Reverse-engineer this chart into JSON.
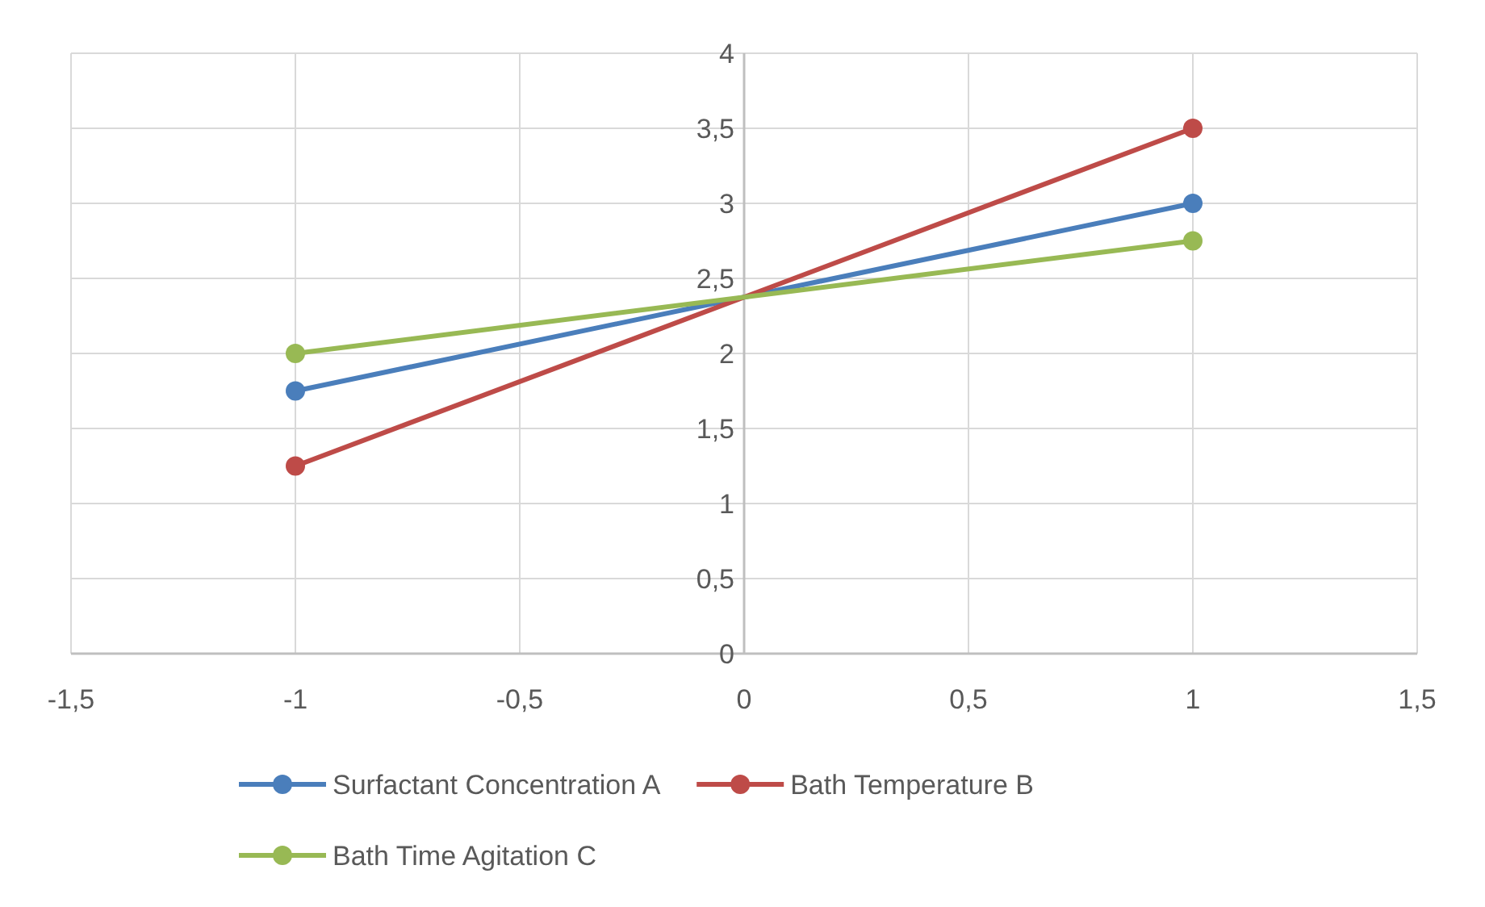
{
  "chart_data": {
    "type": "line",
    "xlim": [
      -1.5,
      1.5
    ],
    "ylim": [
      0,
      4
    ],
    "xticks": [
      {
        "value": -1.5,
        "label": "-1,5"
      },
      -1,
      {
        "value": -0.5,
        "label": "-0,5"
      },
      0,
      {
        "value": 0.5,
        "label": "0,5"
      },
      1,
      {
        "value": 1.5,
        "label": "1,5"
      }
    ],
    "yticks": [
      0,
      {
        "value": 0.5,
        "label": "0,5"
      },
      1,
      {
        "value": 1.5,
        "label": "1,5"
      },
      2,
      {
        "value": 2.5,
        "label": "2,5"
      },
      3,
      {
        "value": 3.5,
        "label": "3,5"
      },
      4
    ],
    "x": [
      -1,
      1
    ],
    "grid": true,
    "legend": "bottom",
    "marker": "circle",
    "line_style": "solid",
    "series": [
      {
        "name": "Surfactant Concentration A",
        "color": "#4a7ebb",
        "values": [
          1.75,
          3.0
        ]
      },
      {
        "name": "Bath Temperature B",
        "color": "#be4b48",
        "values": [
          1.25,
          3.5
        ]
      },
      {
        "name": "Bath Time Agitation C",
        "color": "#98b954",
        "values": [
          2.0,
          2.75
        ]
      }
    ]
  }
}
